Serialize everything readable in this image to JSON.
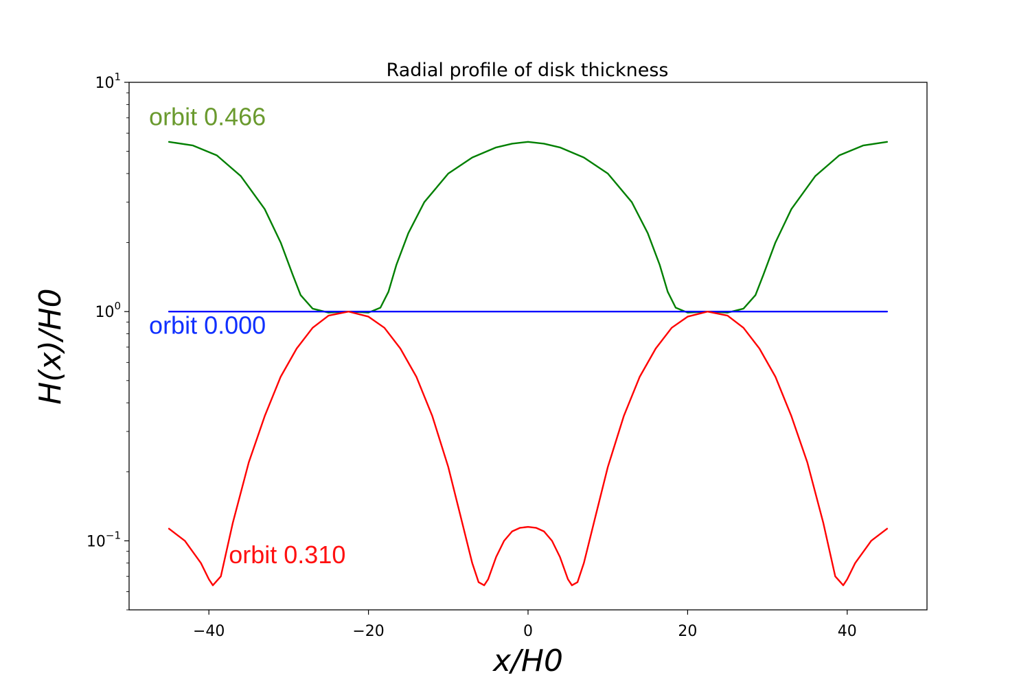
{
  "chart_data": {
    "type": "line",
    "title": "Radial profile of disk thickness",
    "xlabel": "x/H0",
    "ylabel": "H(x)/H0",
    "xlim": [
      -50,
      50
    ],
    "ylim": [
      0.05,
      10
    ],
    "yscale": "log",
    "xticks": [
      -40,
      -20,
      0,
      20,
      40
    ],
    "xtick_labels": [
      "−40",
      "−20",
      "0",
      "20",
      "40"
    ],
    "yticks": [
      {
        "value": 0.1,
        "base": "10",
        "exp": "−1"
      },
      {
        "value": 1,
        "base": "10",
        "exp": "0"
      },
      {
        "value": 10,
        "base": "10",
        "exp": "1"
      }
    ],
    "series": [
      {
        "name": "orbit 0.466",
        "color": "#007f00",
        "x": [
          -45,
          -42,
          -39,
          -36,
          -33,
          -31,
          -29.5,
          -28.5,
          -27,
          -25,
          -22.5,
          -20,
          -18.5,
          -17.5,
          -16.5,
          -15,
          -13,
          -10,
          -7,
          -4,
          -2,
          0,
          2,
          4,
          7,
          10,
          13,
          15,
          16.5,
          17.5,
          18.5,
          20,
          22.5,
          25,
          27,
          28.5,
          29.5,
          31,
          33,
          36,
          39,
          42,
          45
        ],
        "y": [
          5.5,
          5.3,
          4.8,
          3.9,
          2.8,
          2.0,
          1.45,
          1.18,
          1.03,
          0.99,
          1.0,
          0.99,
          1.04,
          1.22,
          1.6,
          2.2,
          3.0,
          4.0,
          4.7,
          5.2,
          5.4,
          5.5,
          5.4,
          5.2,
          4.7,
          4.0,
          3.0,
          2.2,
          1.6,
          1.22,
          1.04,
          0.99,
          1.0,
          0.99,
          1.03,
          1.18,
          1.45,
          2.0,
          2.8,
          3.9,
          4.8,
          5.3,
          5.5
        ]
      },
      {
        "name": "orbit 0.000",
        "color": "#0000ff",
        "x": [
          -45,
          45
        ],
        "y": [
          1.0,
          1.0
        ]
      },
      {
        "name": "orbit 0.310",
        "color": "#ff0000",
        "x": [
          -45,
          -43,
          -41,
          -40,
          -39.5,
          -38.5,
          -37,
          -35,
          -33,
          -31,
          -29,
          -27,
          -25,
          -22.5,
          -20,
          -18,
          -16,
          -14,
          -12,
          -10,
          -8.5,
          -7,
          -6.2,
          -5.5,
          -5,
          -4,
          -3,
          -2,
          -1,
          0,
          1,
          2,
          3,
          4,
          5,
          5.5,
          6.2,
          7,
          8.5,
          10,
          12,
          14,
          16,
          18,
          20,
          22.5,
          25,
          27,
          29,
          31,
          33,
          35,
          37,
          38.5,
          39.5,
          40,
          41,
          43,
          45
        ],
        "y": [
          0.113,
          0.1,
          0.08,
          0.068,
          0.064,
          0.07,
          0.12,
          0.22,
          0.35,
          0.52,
          0.69,
          0.85,
          0.96,
          1.0,
          0.95,
          0.85,
          0.69,
          0.52,
          0.35,
          0.21,
          0.13,
          0.08,
          0.066,
          0.064,
          0.068,
          0.085,
          0.1,
          0.11,
          0.114,
          0.115,
          0.114,
          0.11,
          0.1,
          0.085,
          0.068,
          0.064,
          0.066,
          0.08,
          0.13,
          0.21,
          0.35,
          0.52,
          0.69,
          0.85,
          0.95,
          1.0,
          0.96,
          0.85,
          0.69,
          0.52,
          0.35,
          0.22,
          0.12,
          0.07,
          0.064,
          0.068,
          0.08,
          0.1,
          0.113
        ]
      }
    ],
    "annotations": [
      {
        "text": "orbit 0.466",
        "color": "#6a9a2e",
        "x": -47.5,
        "y": 6.5
      },
      {
        "text": "orbit 0.000",
        "color": "#1030ff",
        "x": -47.5,
        "y": 0.8
      },
      {
        "text": "orbit 0.310",
        "color": "#ff1010",
        "x": -37.5,
        "y": 0.08
      }
    ]
  }
}
